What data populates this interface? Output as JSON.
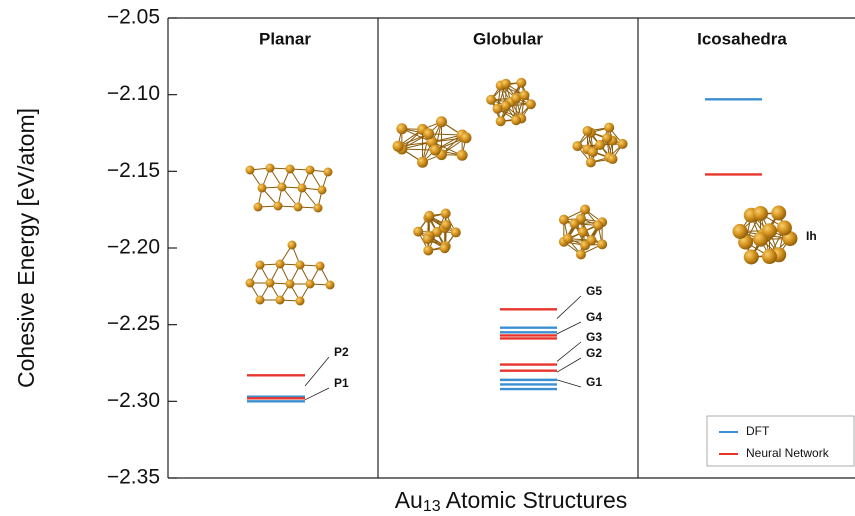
{
  "chart_data": {
    "type": "energy-levels",
    "ylabel": "Cohesive Energy [eV/atom]",
    "xlabel": {
      "base": "Au",
      "subscript": "13",
      "rest": " Atomic Structures"
    },
    "ylim": [
      -2.35,
      -2.05
    ],
    "yticks": [
      {
        "value": -2.05,
        "label": "−2.05"
      },
      {
        "value": -2.1,
        "label": "−2.10"
      },
      {
        "value": -2.15,
        "label": "−2.15"
      },
      {
        "value": -2.2,
        "label": "−2.20"
      },
      {
        "value": -2.25,
        "label": "−2.25"
      },
      {
        "value": -2.3,
        "label": "−2.30"
      },
      {
        "value": -2.35,
        "label": "−2.35"
      }
    ],
    "panels": [
      {
        "name": "Planar",
        "structures": [
          "P2",
          "P1"
        ]
      },
      {
        "name": "Globular",
        "structures": [
          "G5",
          "G4",
          "G3",
          "G2",
          "G1"
        ]
      },
      {
        "name": "Icosahedra",
        "structures": [
          "Ih"
        ]
      }
    ],
    "series": [
      {
        "name": "DFT",
        "color": "#3b8fd0",
        "values": [
          [
            -2.297,
            -2.3
          ],
          [
            -2.252,
            -2.255,
            -2.289,
            -2.286,
            -2.292
          ],
          [
            -2.103
          ]
        ]
      },
      {
        "name": "Neural Network",
        "color": "#e8352b",
        "values": [
          [
            -2.283,
            -2.298
          ],
          [
            -2.24,
            -2.257,
            -2.259,
            -2.276,
            -2.28
          ],
          [
            -2.152
          ]
        ]
      }
    ],
    "legend": "lower right"
  }
}
